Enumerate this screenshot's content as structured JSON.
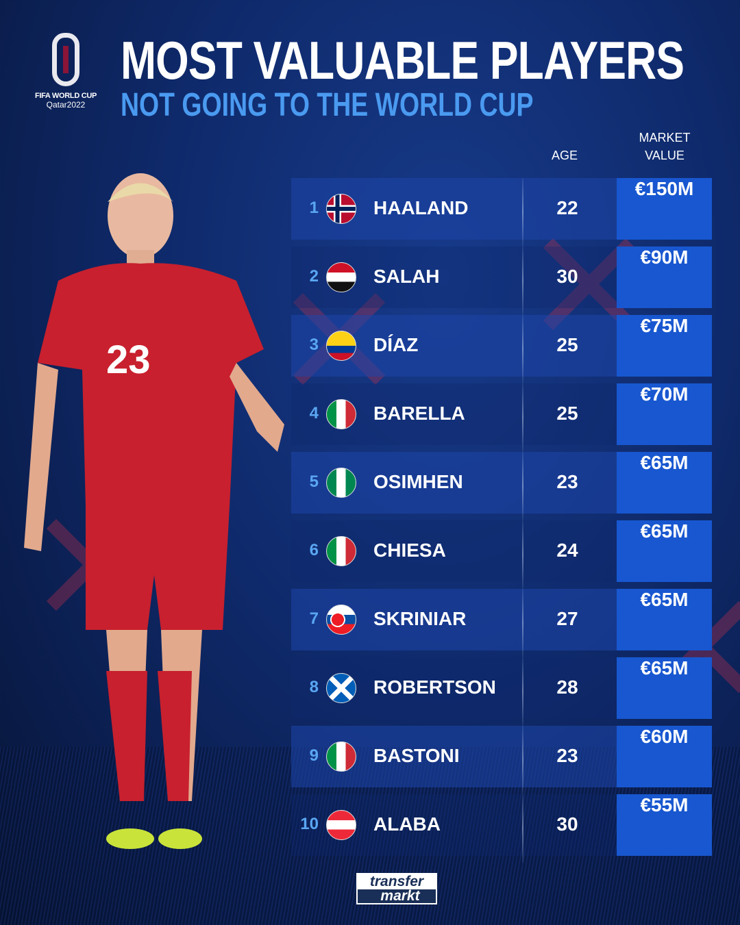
{
  "header": {
    "logo": {
      "line1": "FIFA WORLD CUP",
      "line2": "Qatar2022"
    },
    "title": "MOST VALUABLE PLAYERS",
    "subtitle": "NOT GOING TO THE WORLD CUP"
  },
  "columns": {
    "age": "AGE",
    "market_value": "MARKET\nVALUE"
  },
  "rows": [
    {
      "rank": "1",
      "flag": "norway-flag",
      "name": "HAALAND",
      "age": "22",
      "value": "€150M"
    },
    {
      "rank": "2",
      "flag": "egypt-flag",
      "name": "SALAH",
      "age": "30",
      "value": "€90M"
    },
    {
      "rank": "3",
      "flag": "colombia-flag",
      "name": "DÍAZ",
      "age": "25",
      "value": "€75M"
    },
    {
      "rank": "4",
      "flag": "italy-flag",
      "name": "BARELLA",
      "age": "25",
      "value": "€70M"
    },
    {
      "rank": "5",
      "flag": "nigeria-flag",
      "name": "OSIMHEN",
      "age": "23",
      "value": "€65M"
    },
    {
      "rank": "6",
      "flag": "italy-flag",
      "name": "CHIESA",
      "age": "24",
      "value": "€65M"
    },
    {
      "rank": "7",
      "flag": "slovakia-flag",
      "name": "SKRINIAR",
      "age": "27",
      "value": "€65M"
    },
    {
      "rank": "8",
      "flag": "scotland-flag",
      "name": "ROBERTSON",
      "age": "28",
      "value": "€65M"
    },
    {
      "rank": "9",
      "flag": "italy-flag",
      "name": "BASTONI",
      "age": "23",
      "value": "€60M"
    },
    {
      "rank": "10",
      "flag": "austria-flag",
      "name": "ALABA",
      "age": "30",
      "value": "€55M"
    }
  ],
  "player_photo": {
    "shirt_number": "23"
  },
  "footer": {
    "logo_line1": "transfer",
    "logo_line2": "markt"
  },
  "colors": {
    "accent_blue": "#1857d0",
    "subtitle_blue": "#4a9af0",
    "rank_blue": "#5aa6f2",
    "background": "#0f2a6b"
  }
}
